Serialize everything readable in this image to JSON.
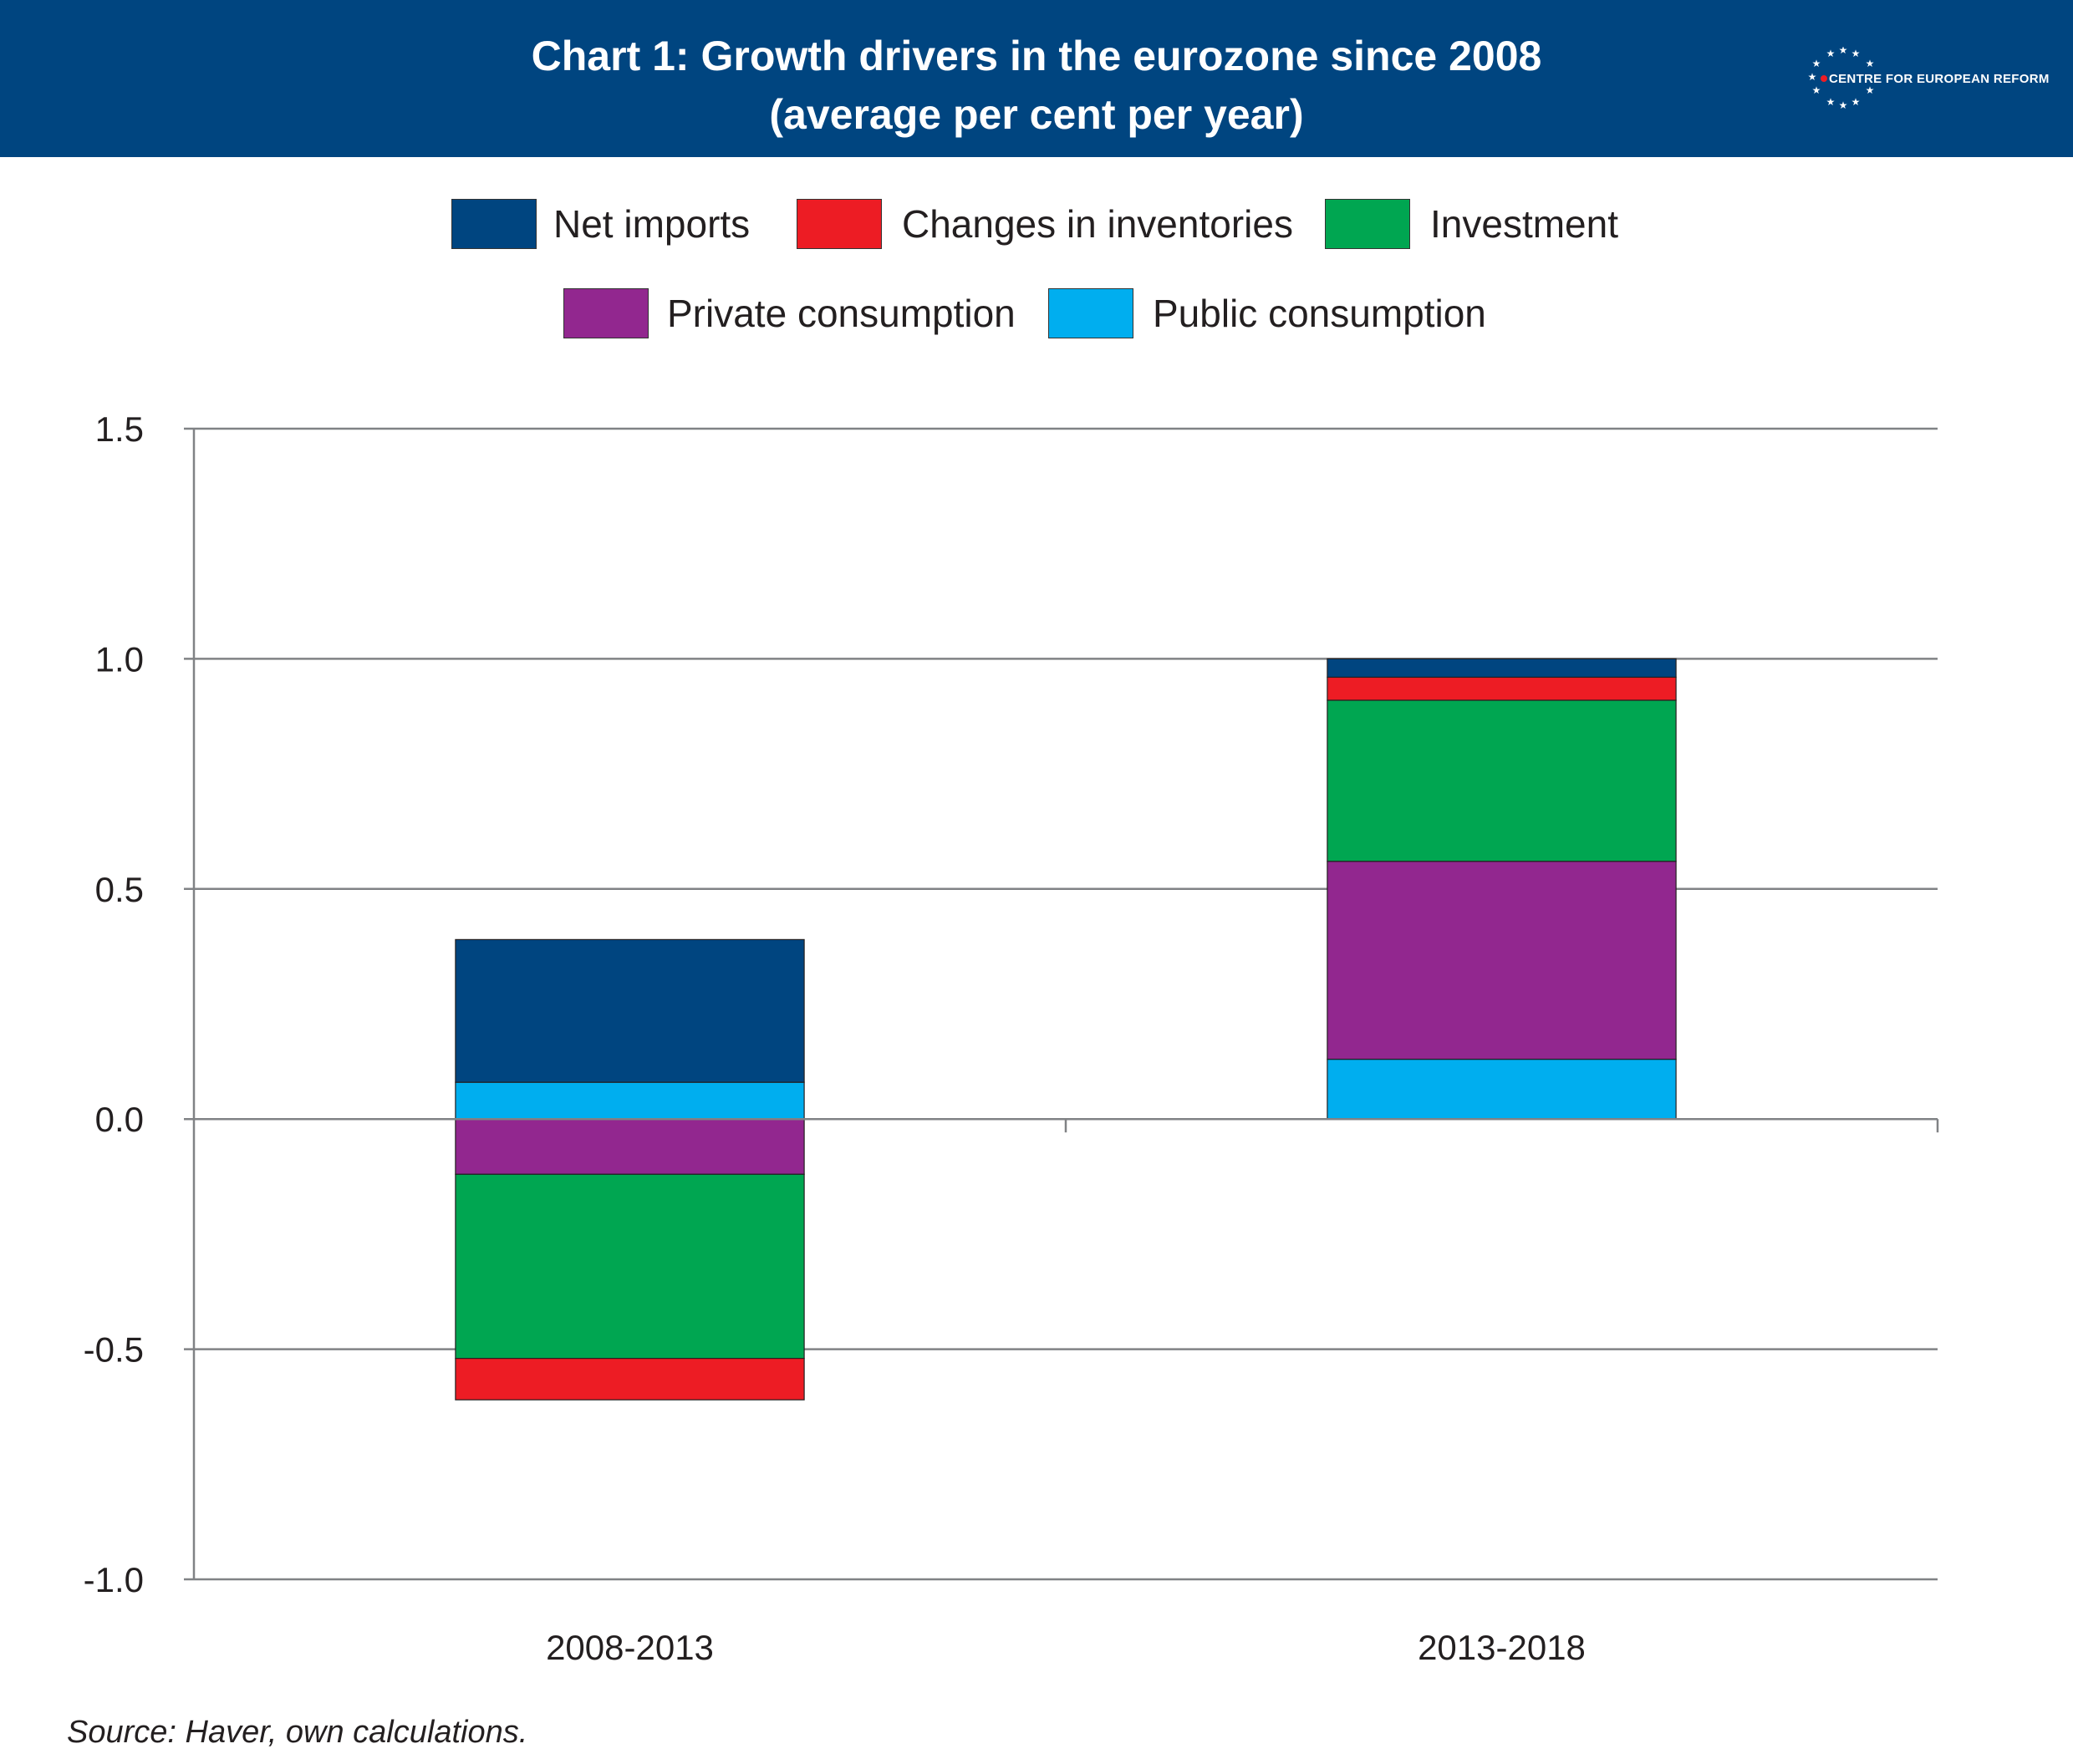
{
  "header": {
    "title_line1": "Chart 1: Growth drivers in the eurozone since 2008",
    "title_line2": "(average per cent per year)",
    "logo_text": "CENTRE FOR EUROPEAN REFORM"
  },
  "legend": {
    "net_imports": "Net imports",
    "changes_in_inventories": "Changes in inventories",
    "investment": "Investment",
    "private_consumption": "Private consumption",
    "public_consumption": "Public consumption"
  },
  "source": "Source: Haver, own calculations.",
  "colors": {
    "header": "#004580",
    "net_imports": "#004580",
    "changes_in_inventories": "#ed1c24",
    "investment": "#00a651",
    "private_consumption": "#92278f",
    "public_consumption": "#00aeef",
    "gridline": "#808285"
  },
  "chart_data": {
    "type": "bar",
    "stacked": true,
    "categories": [
      "2008-2013",
      "2013-2018"
    ],
    "ylim": [
      -1.0,
      1.5
    ],
    "yticks": [
      "-1.0",
      "-0.5",
      "0.0",
      "0.5",
      "1.0",
      "1.5"
    ],
    "grid": true,
    "legend_position": "top",
    "series": [
      {
        "name": "Public consumption",
        "key": "public_consumption",
        "values": [
          0.08,
          0.13
        ]
      },
      {
        "name": "Private consumption",
        "key": "private_consumption",
        "values": [
          -0.12,
          0.43
        ]
      },
      {
        "name": "Investment",
        "key": "investment",
        "values": [
          -0.4,
          0.35
        ]
      },
      {
        "name": "Changes in inventories",
        "key": "changes_in_inventories",
        "values": [
          -0.09,
          0.05
        ]
      },
      {
        "name": "Net imports",
        "key": "net_imports",
        "values": [
          0.31,
          0.04
        ]
      }
    ]
  }
}
